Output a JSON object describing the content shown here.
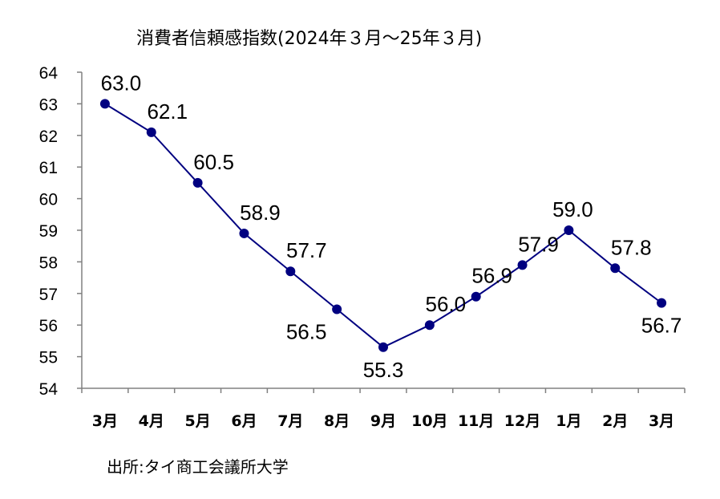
{
  "chart_data": {
    "type": "line",
    "title": "消費者信頼感指数(2024年３月～25年３月)",
    "categories": [
      "3月",
      "4月",
      "5月",
      "6月",
      "7月",
      "8月",
      "9月",
      "10月",
      "11月",
      "12月",
      "1月",
      "2月",
      "3月"
    ],
    "series": [
      {
        "values": [
          63.0,
          62.1,
          60.5,
          58.9,
          57.7,
          56.5,
          55.3,
          56.0,
          56.9,
          57.9,
          59.0,
          57.8,
          56.7
        ]
      }
    ],
    "data_labels": [
      "63.0",
      "62.1",
      "60.5",
      "58.9",
      "57.7",
      "56.5",
      "55.3",
      "56.0",
      "56.9",
      "57.9",
      "59.0",
      "57.8",
      "56.7"
    ],
    "y_ticks": [
      "54",
      "55",
      "56",
      "57",
      "58",
      "59",
      "60",
      "61",
      "62",
      "63",
      "64"
    ],
    "ylim": [
      54,
      64
    ],
    "xlabel": "",
    "ylabel": "",
    "grid": false,
    "colors": {
      "line": "#000080",
      "marker": "#000080",
      "axis": "#808080"
    }
  },
  "source": "出所:タイ商工会議所大学"
}
